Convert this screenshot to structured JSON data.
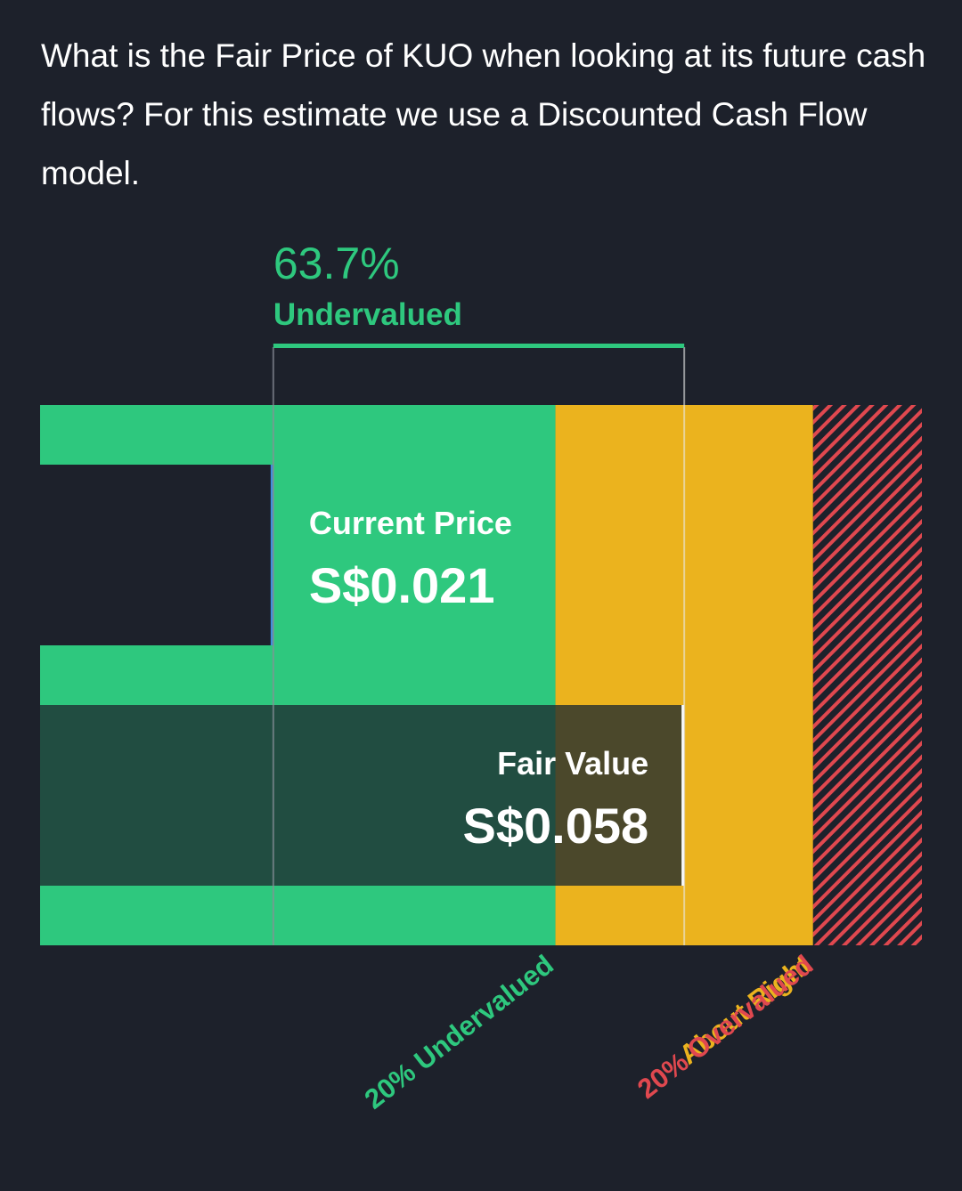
{
  "intro_text": "What is the Fair Price of KUO when looking at its future cash flows? For this estimate we use a Discounted Cash Flow model.",
  "colors": {
    "background": "#1d212b",
    "undervalued": "#2ec87e",
    "about_right": "#ebb31e",
    "overvalued": "#e0484f",
    "current_price_marker": "#3f8edc",
    "fair_value_overlay": "#1b3d3a"
  },
  "chart_data": {
    "type": "bar",
    "currency": "S$",
    "current_price": 0.021,
    "fair_value": 0.058,
    "discount_percent": 63.7,
    "headline_value": "63.7%",
    "headline_label": "Undervalued",
    "bars": [
      {
        "name": "Current Price",
        "label": "Current Price",
        "value": 0.021,
        "display": "S$0.021"
      },
      {
        "name": "Fair Value",
        "label": "Fair Value",
        "value": 0.058,
        "display": "S$0.058"
      }
    ],
    "zones": [
      {
        "label": "20% Undervalued",
        "from": 0,
        "to": 0.0464,
        "color": "#2ec87e"
      },
      {
        "label": "About Right",
        "from": 0.0464,
        "to": 0.0696,
        "color": "#ebb31e"
      },
      {
        "label": "20% Overvalued",
        "from": 0.0696,
        "to": 0.0794,
        "color": "#e0484f"
      }
    ],
    "xlim": [
      0,
      0.0794
    ]
  }
}
